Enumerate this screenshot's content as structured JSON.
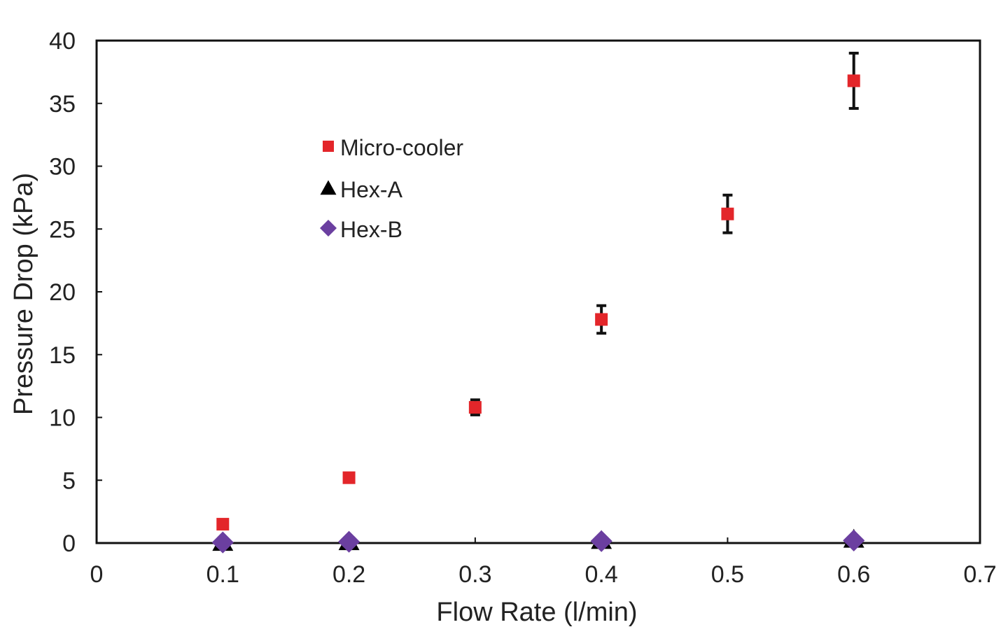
{
  "chart_data": {
    "type": "scatter",
    "xlabel": "Flow Rate (l/min)",
    "ylabel": "Pressure Drop (kPa)",
    "xlim": [
      0,
      0.7
    ],
    "ylim": [
      0,
      40
    ],
    "xticks": [
      "0",
      "0.1",
      "0.2",
      "0.3",
      "0.4",
      "0.5",
      "0.6",
      "0.7"
    ],
    "yticks": [
      "0",
      "5",
      "10",
      "15",
      "20",
      "25",
      "30",
      "35",
      "40"
    ],
    "grid": false,
    "legend_position": "upper-left inside plot",
    "series": [
      {
        "name": "Micro-cooler",
        "marker": "square",
        "color": "#e3262a",
        "x": [
          0.1,
          0.2,
          0.3,
          0.4,
          0.5,
          0.6
        ],
        "y": [
          1.5,
          5.2,
          10.8,
          17.8,
          26.2,
          36.8
        ],
        "error": [
          null,
          null,
          0.6,
          1.1,
          1.5,
          2.2
        ]
      },
      {
        "name": "Hex-A",
        "marker": "triangle",
        "color": "#000000",
        "x": [
          0.1,
          0.2,
          0.4,
          0.6
        ],
        "y": [
          0.05,
          0.1,
          0.2,
          0.3
        ]
      },
      {
        "name": "Hex-B",
        "marker": "diamond",
        "color": "#6b3fa0",
        "x": [
          0.1,
          0.2,
          0.4,
          0.6
        ],
        "y": [
          0.05,
          0.1,
          0.15,
          0.2
        ]
      }
    ]
  }
}
